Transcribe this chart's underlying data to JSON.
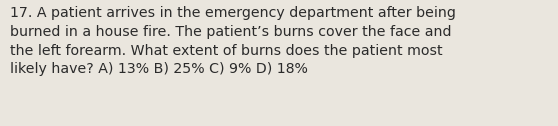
{
  "text": "17. A patient arrives in the emergency department after being\nburned in a house fire. The patient’s burns cover the face and\nthe left forearm. What extent of burns does the patient most\nlikely have? A) 13% B) 25% C) 9% D) 18%",
  "background_color": "#eae6de",
  "text_color": "#2b2b2b",
  "font_size": 10.2,
  "fig_width": 5.58,
  "fig_height": 1.26,
  "dpi": 100
}
